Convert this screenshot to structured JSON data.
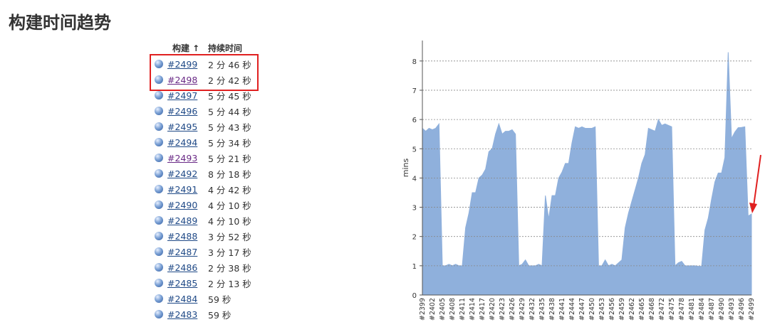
{
  "header": {
    "title": "构建时间趋势"
  },
  "table": {
    "columns": [
      "构建 ↑",
      "持续时间"
    ],
    "rows": [
      [
        "#2499",
        "2 分 46 秒"
      ],
      [
        "#2498",
        "2 分 42 秒"
      ],
      [
        "#2497",
        "5 分 45 秒"
      ],
      [
        "#2496",
        "5 分 44 秒"
      ],
      [
        "#2495",
        "5 分 43 秒"
      ],
      [
        "#2494",
        "5 分 34 秒"
      ],
      [
        "#2493",
        "5 分 21 秒"
      ],
      [
        "#2492",
        "8 分 18 秒"
      ],
      [
        "#2491",
        "4 分 42 秒"
      ],
      [
        "#2490",
        "4 分 10 秒"
      ],
      [
        "#2489",
        "4 分 10 秒"
      ],
      [
        "#2488",
        "3 分 52 秒"
      ],
      [
        "#2487",
        "3 分 17 秒"
      ],
      [
        "#2486",
        "2 分 38 秒"
      ],
      [
        "#2485",
        "2 分 13 秒"
      ],
      [
        "#2484",
        "59 秒"
      ],
      [
        "#2483",
        "59 秒"
      ]
    ]
  },
  "chart_data": {
    "type": "area",
    "y_label": "mins",
    "color": "#8fb0dc",
    "grid": true,
    "ylim": [
      0,
      8.7
    ],
    "yticks": [
      0,
      1,
      2,
      3,
      4,
      5,
      6,
      7,
      8
    ],
    "categories": [
      "#2399",
      null,
      null,
      "#2402",
      null,
      null,
      "#2405",
      null,
      null,
      "#2408",
      null,
      null,
      "#2411",
      null,
      null,
      "#2414",
      null,
      null,
      "#2417",
      null,
      null,
      "#2420",
      null,
      null,
      "#2423",
      null,
      null,
      "#2426",
      null,
      null,
      "#2429",
      null,
      null,
      "#2432",
      null,
      null,
      "#2435",
      null,
      null,
      "#2438",
      null,
      null,
      "#2441",
      null,
      null,
      "#2444",
      null,
      null,
      "#2447",
      null,
      null,
      "#2450",
      null,
      null,
      "#2453",
      null,
      null,
      "#2456",
      null,
      null,
      "#2459",
      null,
      null,
      "#2462",
      null,
      null,
      "#2465",
      null,
      null,
      "#2468",
      null,
      null,
      "#2472",
      null,
      null,
      "#2475",
      null,
      null,
      "#2478",
      null,
      null,
      "#2481",
      null,
      null,
      "#2484",
      null,
      null,
      "#2487",
      null,
      null,
      "#2490",
      null,
      null,
      "#2493",
      null,
      null,
      "#2496",
      null,
      null,
      "#2499"
    ],
    "values": [
      5.7,
      5.6,
      5.7,
      5.65,
      5.7,
      5.85,
      1.0,
      1.0,
      1.05,
      1.0,
      1.05,
      1.0,
      1.0,
      2.3,
      2.8,
      3.5,
      3.5,
      4.0,
      4.1,
      4.3,
      4.9,
      5.0,
      5.5,
      5.85,
      5.5,
      5.6,
      5.6,
      5.65,
      5.5,
      1.0,
      1.05,
      1.2,
      1.0,
      1.0,
      1.0,
      1.05,
      1.0,
      3.4,
      2.6,
      3.4,
      3.4,
      4.0,
      4.2,
      4.5,
      4.5,
      5.2,
      5.75,
      5.7,
      5.75,
      5.7,
      5.7,
      5.7,
      5.75,
      1.0,
      1.0,
      1.2,
      1.0,
      1.05,
      1.0,
      1.1,
      1.2,
      2.3,
      2.8,
      3.2,
      3.6,
      4.0,
      4.5,
      4.8,
      5.7,
      5.65,
      5.6,
      6.0,
      5.8,
      5.85,
      5.8,
      5.75,
      1.0,
      1.1,
      1.15,
      1.0,
      1.0,
      1.0,
      1.0,
      0.98,
      0.98,
      2.22,
      2.63,
      3.28,
      3.87,
      4.17,
      4.17,
      4.7,
      8.3,
      5.35,
      5.57,
      5.72,
      5.73,
      5.75,
      2.7,
      2.77
    ]
  }
}
